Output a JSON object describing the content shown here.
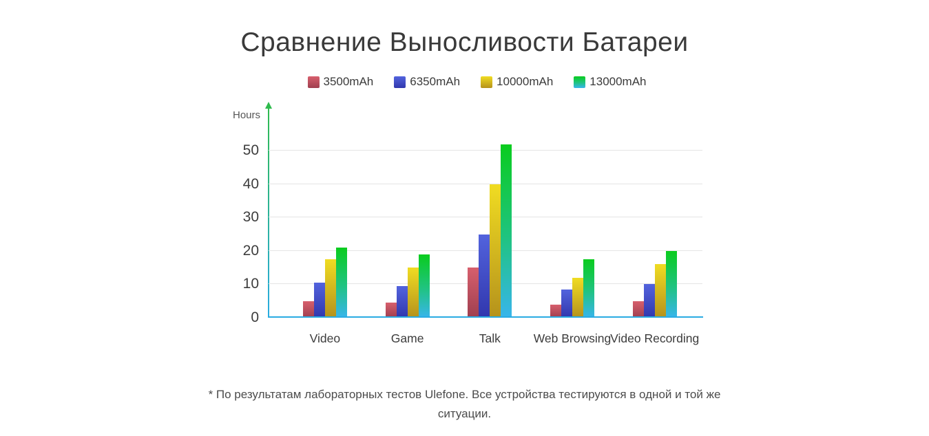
{
  "title": "Сравнение Выносливости Батареи",
  "footnote": "* По результатам лабораторных тестов Ulefone. Все устройства тестируются в одной и той же ситуации.",
  "chart_data": {
    "type": "bar",
    "title": "Сравнение Выносливости Батареи",
    "ylabel": "Hours",
    "xlabel": "",
    "categories": [
      "Video",
      "Game",
      "Talk",
      "Web Browsing",
      "Video Recording"
    ],
    "series": [
      {
        "name": "3500mAh",
        "values": [
          5,
          4.5,
          15,
          4,
          5
        ],
        "color_top": "#d75f6d",
        "color_bottom": "#9f3f4f"
      },
      {
        "name": "6350mAh",
        "values": [
          10.5,
          9.5,
          25,
          8.5,
          10
        ],
        "color_top": "#5263dd",
        "color_bottom": "#3137ad"
      },
      {
        "name": "10000mAh",
        "values": [
          17.5,
          15,
          40,
          12,
          16
        ],
        "color_top": "#f0dc22",
        "color_bottom": "#b5921c"
      },
      {
        "name": "13000mAh",
        "values": [
          21,
          19,
          52,
          17.5,
          20
        ],
        "color_top": "#0acc1e",
        "color_mid": "#20c383",
        "color_bottom": "#38b5ec"
      }
    ],
    "yticks": [
      0,
      10,
      20,
      30,
      40,
      50
    ],
    "ylim": [
      0,
      63
    ],
    "grid": true,
    "legend_position": "top",
    "colors": {
      "gridline": "#e4e4e4",
      "axis_x": "#29abe2",
      "axis_y_gradient_top": "#2fbb4d",
      "axis_y_gradient_bottom": "#29abe2"
    }
  }
}
